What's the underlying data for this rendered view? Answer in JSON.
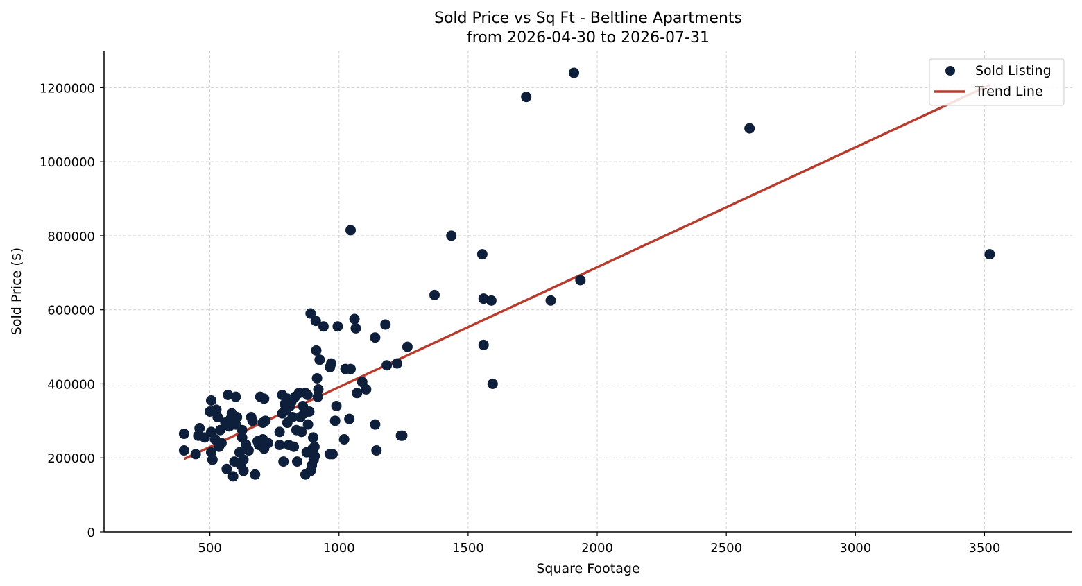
{
  "chart_data": {
    "type": "scatter",
    "title": "Sold Price vs Sq Ft - Beltline Apartments",
    "subtitle": "from 2026-04-30 to 2026-07-31",
    "xlabel": "Square Footage",
    "ylabel": "Sold Price ($)",
    "xlim": [
      90,
      3840
    ],
    "ylim": [
      0,
      1300000
    ],
    "xticks": [
      500,
      1000,
      1500,
      2000,
      2500,
      3000,
      3500
    ],
    "yticks": [
      0,
      200000,
      400000,
      600000,
      800000,
      1000000,
      1200000
    ],
    "grid": true,
    "legend_position": "top-right",
    "colors": {
      "points": "#0d1f3a",
      "trend": "#b83c2e"
    },
    "series": [
      {
        "name": "Sold Listing",
        "kind": "scatter",
        "points": [
          [
            400,
            265000
          ],
          [
            400,
            220000
          ],
          [
            445,
            210000
          ],
          [
            455,
            260000
          ],
          [
            460,
            280000
          ],
          [
            480,
            255000
          ],
          [
            500,
            325000
          ],
          [
            505,
            355000
          ],
          [
            505,
            270000
          ],
          [
            505,
            215000
          ],
          [
            510,
            195000
          ],
          [
            520,
            250000
          ],
          [
            525,
            330000
          ],
          [
            530,
            310000
          ],
          [
            535,
            230000
          ],
          [
            540,
            275000
          ],
          [
            545,
            240000
          ],
          [
            560,
            295000
          ],
          [
            565,
            170000
          ],
          [
            570,
            370000
          ],
          [
            575,
            285000
          ],
          [
            580,
            305000
          ],
          [
            585,
            320000
          ],
          [
            590,
            150000
          ],
          [
            595,
            190000
          ],
          [
            600,
            365000
          ],
          [
            600,
            290000
          ],
          [
            605,
            310000
          ],
          [
            615,
            215000
          ],
          [
            620,
            180000
          ],
          [
            625,
            275000
          ],
          [
            625,
            255000
          ],
          [
            630,
            165000
          ],
          [
            630,
            195000
          ],
          [
            640,
            235000
          ],
          [
            650,
            220000
          ],
          [
            660,
            310000
          ],
          [
            665,
            300000
          ],
          [
            675,
            155000
          ],
          [
            685,
            245000
          ],
          [
            690,
            235000
          ],
          [
            695,
            365000
          ],
          [
            705,
            295000
          ],
          [
            705,
            250000
          ],
          [
            710,
            225000
          ],
          [
            710,
            360000
          ],
          [
            715,
            300000
          ],
          [
            725,
            240000
          ],
          [
            770,
            235000
          ],
          [
            770,
            270000
          ],
          [
            780,
            320000
          ],
          [
            780,
            370000
          ],
          [
            785,
            190000
          ],
          [
            790,
            345000
          ],
          [
            795,
            330000
          ],
          [
            800,
            295000
          ],
          [
            800,
            360000
          ],
          [
            805,
            235000
          ],
          [
            810,
            340000
          ],
          [
            815,
            350000
          ],
          [
            820,
            310000
          ],
          [
            825,
            230000
          ],
          [
            830,
            365000
          ],
          [
            835,
            275000
          ],
          [
            838,
            190000
          ],
          [
            845,
            375000
          ],
          [
            850,
            310000
          ],
          [
            855,
            270000
          ],
          [
            860,
            340000
          ],
          [
            865,
            320000
          ],
          [
            870,
            375000
          ],
          [
            870,
            155000
          ],
          [
            875,
            215000
          ],
          [
            878,
            370000
          ],
          [
            880,
            290000
          ],
          [
            885,
            325000
          ],
          [
            890,
            165000
          ],
          [
            890,
            590000
          ],
          [
            895,
            180000
          ],
          [
            898,
            225000
          ],
          [
            900,
            255000
          ],
          [
            902,
            195000
          ],
          [
            905,
            230000
          ],
          [
            906,
            205000
          ],
          [
            910,
            570000
          ],
          [
            912,
            490000
          ],
          [
            915,
            415000
          ],
          [
            918,
            365000
          ],
          [
            920,
            385000
          ],
          [
            925,
            465000
          ],
          [
            940,
            555000
          ],
          [
            965,
            445000
          ],
          [
            965,
            210000
          ],
          [
            970,
            455000
          ],
          [
            975,
            210000
          ],
          [
            985,
            300000
          ],
          [
            990,
            340000
          ],
          [
            995,
            555000
          ],
          [
            1020,
            250000
          ],
          [
            1025,
            440000
          ],
          [
            1040,
            305000
          ],
          [
            1045,
            440000
          ],
          [
            1045,
            815000
          ],
          [
            1060,
            575000
          ],
          [
            1065,
            550000
          ],
          [
            1070,
            375000
          ],
          [
            1090,
            405000
          ],
          [
            1105,
            385000
          ],
          [
            1140,
            525000
          ],
          [
            1140,
            290000
          ],
          [
            1145,
            220000
          ],
          [
            1180,
            560000
          ],
          [
            1185,
            450000
          ],
          [
            1225,
            455000
          ],
          [
            1240,
            260000
          ],
          [
            1245,
            260000
          ],
          [
            1265,
            500000
          ],
          [
            1370,
            640000
          ],
          [
            1435,
            800000
          ],
          [
            1555,
            750000
          ],
          [
            1560,
            505000
          ],
          [
            1560,
            630000
          ],
          [
            1590,
            625000
          ],
          [
            1595,
            400000
          ],
          [
            1725,
            1175000
          ],
          [
            1820,
            625000
          ],
          [
            1910,
            1240000
          ],
          [
            1935,
            680000
          ],
          [
            2590,
            1090000
          ],
          [
            3520,
            750000
          ]
        ]
      },
      {
        "name": "Trend Line",
        "kind": "line",
        "points": [
          [
            400,
            197000
          ],
          [
            3520,
            1207000
          ]
        ]
      }
    ]
  }
}
